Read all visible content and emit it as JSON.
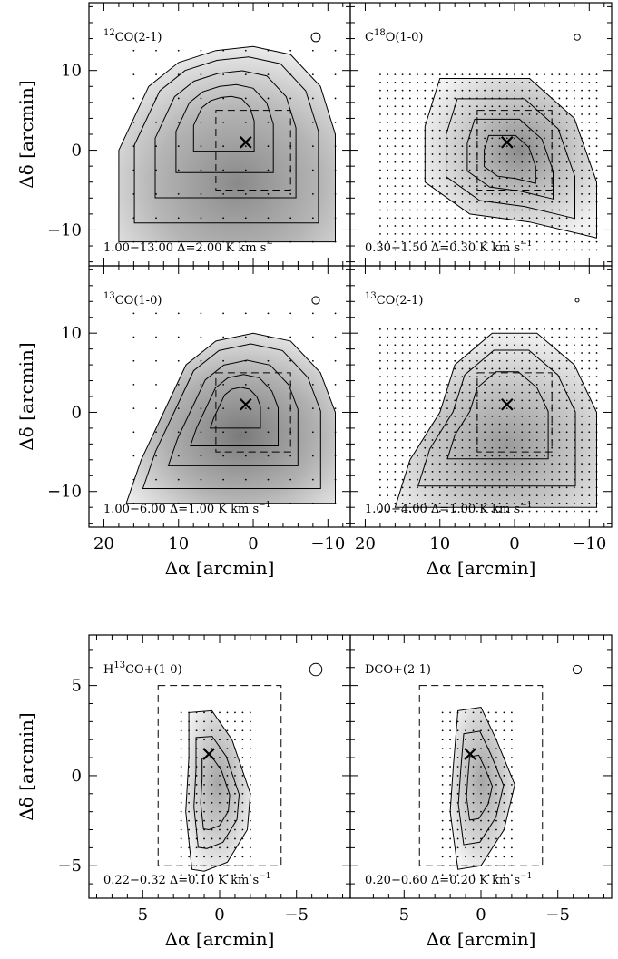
{
  "chart_data": [
    {
      "type": "heatmap",
      "panel": "top-left",
      "molecule": "12CO(2-1)",
      "molecule_parts": [
        "",
        "12",
        "CO(2-1)"
      ],
      "contour_label": "1.00−13.00  Δ=2.00 K km s",
      "contour_sup": "−",
      "xlim": [
        22,
        -13
      ],
      "ylim": [
        -14.5,
        18.5
      ],
      "x_ticks": [
        "20",
        "10",
        "0",
        "−10"
      ],
      "y_ticks": [
        "10",
        "0",
        "−10"
      ],
      "peak": [
        1,
        1
      ],
      "dashed_box": [
        5,
        -5,
        -5,
        5
      ],
      "beam": 1.2,
      "grid_spacing": 3,
      "grid_xlim": [
        18,
        -11
      ],
      "grid_ylim": [
        -11.5,
        15
      ],
      "show_x_labels": false,
      "show_y_labels": true,
      "xlabel": "",
      "ylabel": "Δδ [arcmin]"
    },
    {
      "type": "heatmap",
      "panel": "top-right",
      "molecule": "C18O(1-0)",
      "molecule_parts": [
        "C",
        "18",
        "O(1-0)"
      ],
      "contour_label": "0.30−1.50  Δ=0.30 K km s",
      "contour_sup": "−1",
      "xlim": [
        22,
        -13
      ],
      "ylim": [
        -14.5,
        18.5
      ],
      "x_ticks": [
        "20",
        "10",
        "0",
        "−10"
      ],
      "y_ticks": [
        "10",
        "0",
        "−10"
      ],
      "peak": [
        1,
        1
      ],
      "dashed_box": [
        5,
        -5,
        -5,
        5
      ],
      "beam": 0.8,
      "grid_spacing": 1,
      "grid_xlim": [
        18,
        -11
      ],
      "grid_ylim": [
        -12.5,
        9.5
      ],
      "show_x_labels": false,
      "show_y_labels": false,
      "xlabel": "",
      "ylabel": ""
    },
    {
      "type": "heatmap",
      "panel": "middle-left",
      "molecule": "13CO(1-0)",
      "molecule_parts": [
        "",
        "13",
        "CO(1-0)"
      ],
      "contour_label": "1.00−6.00  Δ=1.00 K km s",
      "contour_sup": "−1",
      "xlim": [
        22,
        -13
      ],
      "ylim": [
        -14.5,
        18.5
      ],
      "x_ticks": [
        "20",
        "10",
        "0",
        "−10"
      ],
      "y_ticks": [
        "10",
        "0",
        "−10"
      ],
      "peak": [
        1,
        1
      ],
      "dashed_box": [
        5,
        -5,
        -5,
        5
      ],
      "beam": 1.0,
      "grid_spacing": 3,
      "grid_xlim": [
        18,
        -11
      ],
      "grid_ylim": [
        -11.5,
        15
      ],
      "show_x_labels": true,
      "show_y_labels": true,
      "xlabel": "Δα [arcmin]",
      "ylabel": "Δδ [arcmin]"
    },
    {
      "type": "heatmap",
      "panel": "middle-right",
      "molecule": "13CO(2-1)",
      "molecule_parts": [
        "",
        "13",
        "CO(2-1)"
      ],
      "contour_label": "1.00−4.00  Δ=1.00 K km s",
      "contour_sup": "−1",
      "xlim": [
        22,
        -13
      ],
      "ylim": [
        -14.5,
        18.5
      ],
      "x_ticks": [
        "20",
        "10",
        "0",
        "−10"
      ],
      "y_ticks": [
        "10",
        "0",
        "−10"
      ],
      "peak": [
        1,
        1
      ],
      "dashed_box": [
        5,
        -5,
        -5,
        5
      ],
      "beam": 0.4,
      "grid_spacing": 1,
      "grid_xlim": [
        18,
        -11
      ],
      "grid_ylim": [
        -12.5,
        10.5
      ],
      "show_x_labels": true,
      "show_y_labels": false,
      "xlabel": "Δα [arcmin]",
      "ylabel": ""
    },
    {
      "type": "heatmap",
      "panel": "bottom-left",
      "molecule": "H13CO+(1-0)",
      "molecule_parts": [
        "H",
        "13",
        "CO+(1-0)"
      ],
      "contour_label": "0.22−0.32  Δ=0.10 K km s",
      "contour_sup": "−1",
      "xlim": [
        8.5,
        -8.5
      ],
      "ylim": [
        -6.8,
        7.8
      ],
      "x_ticks": [
        "5",
        "0",
        "−5"
      ],
      "y_ticks": [
        "5",
        "0",
        "−5"
      ],
      "peak": [
        0.7,
        1.2
      ],
      "dashed_box": [
        4,
        -4,
        -5,
        5
      ],
      "beam": 0.8,
      "grid_spacing": 0.5,
      "grid_xlim": [
        2.5,
        -2
      ],
      "grid_ylim": [
        -5.5,
        3.5
      ],
      "show_x_labels": true,
      "show_y_labels": true,
      "xlabel": "Δα [arcmin]",
      "ylabel": "Δδ [arcmin]"
    },
    {
      "type": "heatmap",
      "panel": "bottom-right",
      "molecule": "DCO+(2-1)",
      "molecule_parts": [
        "DCO+(2-1)",
        "",
        ""
      ],
      "contour_label": "0.20−0.60  Δ=0.20 K km s",
      "contour_sup": "−1",
      "xlim": [
        8.5,
        -8.5
      ],
      "ylim": [
        -6.8,
        7.8
      ],
      "x_ticks": [
        "5",
        "0",
        "−5"
      ],
      "y_ticks": [
        "5",
        "0",
        "−5"
      ],
      "peak": [
        0.7,
        1.2
      ],
      "dashed_box": [
        4,
        -4,
        -5,
        5
      ],
      "beam": 0.55,
      "grid_spacing": 0.5,
      "grid_xlim": [
        2.5,
        -2
      ],
      "grid_ylim": [
        -5.5,
        3.5
      ],
      "show_x_labels": true,
      "show_y_labels": false,
      "xlabel": "Δα [arcmin]",
      "ylabel": ""
    }
  ]
}
